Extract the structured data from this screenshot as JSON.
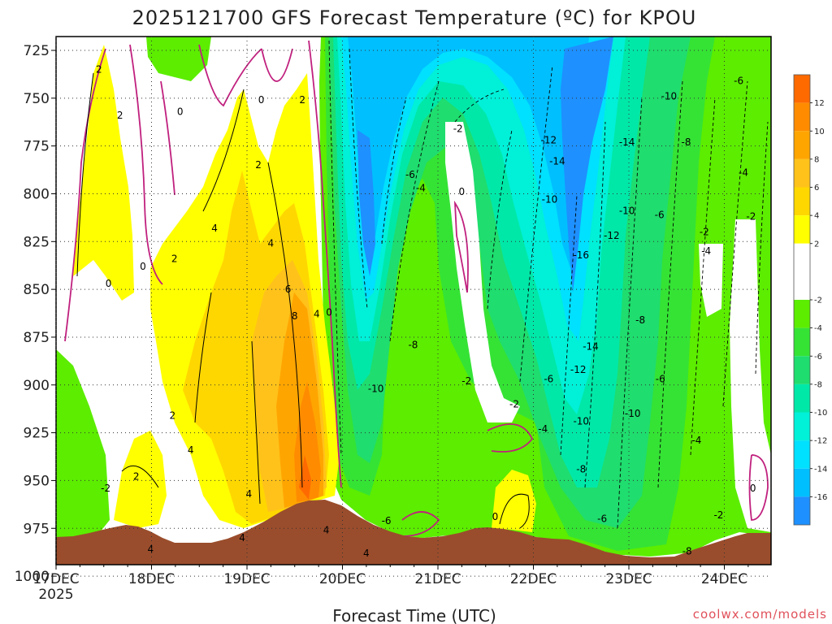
{
  "chart_data": {
    "type": "heatmap",
    "title": "2025121700 GFS Forecast Temperature (ºC) for KPOU",
    "xlabel": "Forecast Time (UTC)",
    "ylabel": "Pressure (hPa)",
    "credit": "coolwx.com/models",
    "x_ticks": [
      {
        "label": "17DEC",
        "sublabel": "2025",
        "day": 0
      },
      {
        "label": "18DEC",
        "day": 1
      },
      {
        "label": "19DEC",
        "day": 2
      },
      {
        "label": "20DEC",
        "day": 3
      },
      {
        "label": "21DEC",
        "day": 4
      },
      {
        "label": "22DEC",
        "day": 5
      },
      {
        "label": "23DEC",
        "day": 6
      },
      {
        "label": "24DEC",
        "day": 7
      }
    ],
    "x_range_days": [
      0,
      7.5
    ],
    "y_ticks": [
      725,
      750,
      775,
      800,
      825,
      850,
      875,
      900,
      925,
      950,
      975,
      1000
    ],
    "y_range_hpa": [
      712,
      1024
    ],
    "colorbar": {
      "ticks": [
        12,
        10,
        8,
        6,
        4,
        2,
        -2,
        -4,
        -6,
        -8,
        -10,
        -12,
        -14,
        -16
      ],
      "bins": [
        {
          "min": 12,
          "max": 14,
          "color": "#ff6a00"
        },
        {
          "min": 10,
          "max": 12,
          "color": "#ff8c00"
        },
        {
          "min": 8,
          "max": 10,
          "color": "#ffa500"
        },
        {
          "min": 6,
          "max": 8,
          "color": "#ffc21a"
        },
        {
          "min": 4,
          "max": 6,
          "color": "#ffd700"
        },
        {
          "min": 2,
          "max": 4,
          "color": "#ffff00"
        },
        {
          "min": -2,
          "max": 2,
          "color": "#ffffff"
        },
        {
          "min": -4,
          "max": -2,
          "color": "#5ced00"
        },
        {
          "min": -6,
          "max": -4,
          "color": "#35e335"
        },
        {
          "min": -8,
          "max": -6,
          "color": "#1fdd6e"
        },
        {
          "min": -10,
          "max": -8,
          "color": "#00e8a8"
        },
        {
          "min": -12,
          "max": -10,
          "color": "#00f0d8"
        },
        {
          "min": -14,
          "max": -12,
          "color": "#00e0ff"
        },
        {
          "min": -16,
          "max": -14,
          "color": "#00bfff"
        },
        {
          "min": -18,
          "max": -16,
          "color": "#1e90ff"
        }
      ]
    },
    "temperature_profile_by_time": [
      {
        "day": 0.0,
        "t_850": 0,
        "t_950": 0
      },
      {
        "day": 0.5,
        "t_850": 1,
        "t_950": -2
      },
      {
        "day": 1.0,
        "t_850": 0,
        "t_950": 3
      },
      {
        "day": 1.5,
        "t_850": 2,
        "t_950": 2
      },
      {
        "day": 2.0,
        "t_850": 4,
        "t_950": 4
      },
      {
        "day": 2.5,
        "t_850": 6,
        "t_950": 7
      },
      {
        "day": 2.75,
        "t_850": 7,
        "t_950": 10
      },
      {
        "day": 3.0,
        "t_850": -2,
        "t_950": -2
      },
      {
        "day": 3.25,
        "t_850": -16,
        "t_950": -8
      },
      {
        "day": 3.5,
        "t_850": -10,
        "t_950": -6
      },
      {
        "day": 4.0,
        "t_850": -4,
        "t_950": -3
      },
      {
        "day": 4.3,
        "t_850": 0,
        "t_950": -2
      },
      {
        "day": 5.0,
        "t_850": -6,
        "t_950": -4
      },
      {
        "day": 5.5,
        "t_850": -14,
        "t_950": -8
      },
      {
        "day": 6.0,
        "t_850": -12,
        "t_950": -10
      },
      {
        "day": 6.5,
        "t_850": -8,
        "t_950": -6
      },
      {
        "day": 7.0,
        "t_850": -4,
        "t_950": -2
      },
      {
        "day": 7.5,
        "t_850": -4,
        "t_950": -3
      }
    ],
    "contour_labels": [
      {
        "text": "2",
        "day": 0.45,
        "hpa": 735
      },
      {
        "text": "2",
        "day": 0.67,
        "hpa": 759
      },
      {
        "text": "0",
        "day": 1.3,
        "hpa": 757
      },
      {
        "text": "0",
        "day": 2.15,
        "hpa": 751
      },
      {
        "text": "2",
        "day": 2.58,
        "hpa": 751
      },
      {
        "text": "2",
        "day": 2.12,
        "hpa": 785
      },
      {
        "text": "4",
        "day": 1.66,
        "hpa": 818
      },
      {
        "text": "4",
        "day": 2.25,
        "hpa": 826
      },
      {
        "text": "2",
        "day": 1.24,
        "hpa": 834
      },
      {
        "text": "0",
        "day": 0.91,
        "hpa": 838
      },
      {
        "text": "0",
        "day": 0.55,
        "hpa": 847
      },
      {
        "text": "6",
        "day": 2.43,
        "hpa": 850
      },
      {
        "text": "8",
        "day": 2.5,
        "hpa": 864
      },
      {
        "text": "4",
        "day": 2.73,
        "hpa": 863
      },
      {
        "text": "0",
        "day": 2.86,
        "hpa": 862
      },
      {
        "text": "2",
        "day": 1.22,
        "hpa": 916
      },
      {
        "text": "4",
        "day": 1.41,
        "hpa": 934
      },
      {
        "text": "2",
        "day": 0.84,
        "hpa": 948
      },
      {
        "text": "-2",
        "day": 0.52,
        "hpa": 954
      },
      {
        "text": "4",
        "day": 0.99,
        "hpa": 986
      },
      {
        "text": "4",
        "day": 1.95,
        "hpa": 980
      },
      {
        "text": "4",
        "day": 2.02,
        "hpa": 957
      },
      {
        "text": "4",
        "day": 2.83,
        "hpa": 976
      },
      {
        "text": "4",
        "day": 3.25,
        "hpa": 988
      },
      {
        "text": "-6",
        "day": 3.46,
        "hpa": 971
      },
      {
        "text": "-10",
        "day": 3.35,
        "hpa": 902
      },
      {
        "text": "-8",
        "day": 3.74,
        "hpa": 879
      },
      {
        "text": "-6",
        "day": 3.71,
        "hpa": 790
      },
      {
        "text": "-4",
        "day": 3.82,
        "hpa": 797
      },
      {
        "text": "-2",
        "day": 4.21,
        "hpa": 766
      },
      {
        "text": "0",
        "day": 4.25,
        "hpa": 799
      },
      {
        "text": "-2",
        "day": 4.3,
        "hpa": 898
      },
      {
        "text": "0",
        "day": 4.6,
        "hpa": 969
      },
      {
        "text": "-2",
        "day": 4.8,
        "hpa": 910
      },
      {
        "text": "-4",
        "day": 5.1,
        "hpa": 923
      },
      {
        "text": "-6",
        "day": 5.16,
        "hpa": 897
      },
      {
        "text": "-12",
        "day": 5.16,
        "hpa": 772
      },
      {
        "text": "-14",
        "day": 5.25,
        "hpa": 783
      },
      {
        "text": "-10",
        "day": 5.17,
        "hpa": 803
      },
      {
        "text": "-16",
        "day": 5.5,
        "hpa": 832
      },
      {
        "text": "-14",
        "day": 5.6,
        "hpa": 880
      },
      {
        "text": "-12",
        "day": 5.47,
        "hpa": 892
      },
      {
        "text": "-10",
        "day": 5.5,
        "hpa": 919
      },
      {
        "text": "-8",
        "day": 5.5,
        "hpa": 944
      },
      {
        "text": "-6",
        "day": 5.72,
        "hpa": 970
      },
      {
        "text": "-2",
        "day": 5.42,
        "hpa": 1001
      },
      {
        "text": "-14",
        "day": 5.98,
        "hpa": 773
      },
      {
        "text": "-12",
        "day": 5.82,
        "hpa": 822
      },
      {
        "text": "-10",
        "day": 5.98,
        "hpa": 809
      },
      {
        "text": "-10",
        "day": 6.42,
        "hpa": 749
      },
      {
        "text": "-8",
        "day": 6.6,
        "hpa": 773
      },
      {
        "text": "-6",
        "day": 6.32,
        "hpa": 811
      },
      {
        "text": "-8",
        "day": 6.12,
        "hpa": 866
      },
      {
        "text": "-6",
        "day": 6.33,
        "hpa": 897
      },
      {
        "text": "-10",
        "day": 6.04,
        "hpa": 915
      },
      {
        "text": "-4",
        "day": 6.71,
        "hpa": 929
      },
      {
        "text": "-8",
        "day": 6.61,
        "hpa": 987
      },
      {
        "text": "-6",
        "day": 6.67,
        "hpa": 999
      },
      {
        "text": "-4",
        "day": 6.81,
        "hpa": 830
      },
      {
        "text": "-2",
        "day": 6.79,
        "hpa": 820
      },
      {
        "text": "-6",
        "day": 7.15,
        "hpa": 741
      },
      {
        "text": "-4",
        "day": 7.2,
        "hpa": 789
      },
      {
        "text": "-2",
        "day": 7.28,
        "hpa": 812
      },
      {
        "text": "-2",
        "day": 6.94,
        "hpa": 968
      },
      {
        "text": "0",
        "day": 7.3,
        "hpa": 954
      }
    ]
  }
}
